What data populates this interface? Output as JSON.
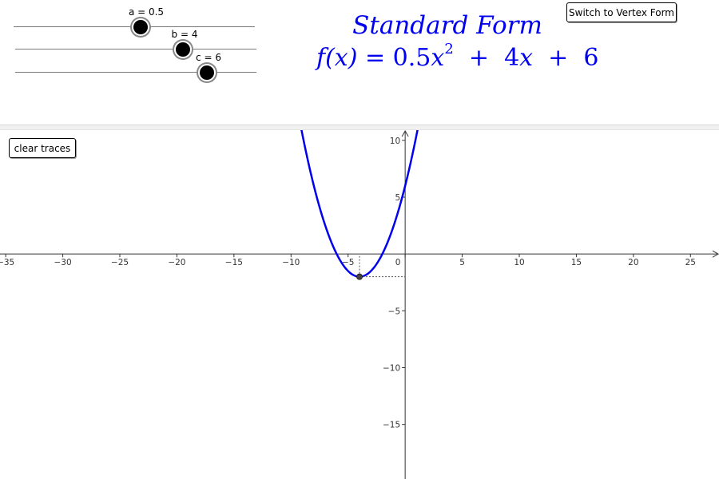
{
  "sliders": [
    {
      "name": "a",
      "label": "a = 0.5",
      "value": 0.5
    },
    {
      "name": "b",
      "label": "b = 4",
      "value": 4
    },
    {
      "name": "c",
      "label": "c = 6",
      "value": 6
    }
  ],
  "buttons": {
    "switch_form": "Switch to Vertex Form",
    "clear_traces": "clear traces"
  },
  "equation": {
    "title": "Standard Form",
    "fx": "f(x)",
    "equals": "=",
    "a": "0.5",
    "x_squared": "x",
    "exponent": "2",
    "plus1": "+",
    "b": "4",
    "x": "x",
    "plus2": "+",
    "c": "6"
  },
  "colors": {
    "curve": "#0000ee",
    "axis": "#333333"
  },
  "chart_data": {
    "type": "line",
    "function": "0.5x^2 + 4x + 6",
    "coefficients": {
      "a": 0.5,
      "b": 4,
      "c": 6
    },
    "vertex": [
      -4,
      -2
    ],
    "xlim": [
      -35.5,
      27.5
    ],
    "ylim": [
      -19.8,
      10.9
    ],
    "x_ticks": [
      -35,
      -30,
      -25,
      -20,
      -15,
      -10,
      -5,
      0,
      5,
      10,
      15,
      20,
      25
    ],
    "y_ticks": [
      -15,
      -10,
      -5,
      5,
      10
    ],
    "grid": false
  }
}
